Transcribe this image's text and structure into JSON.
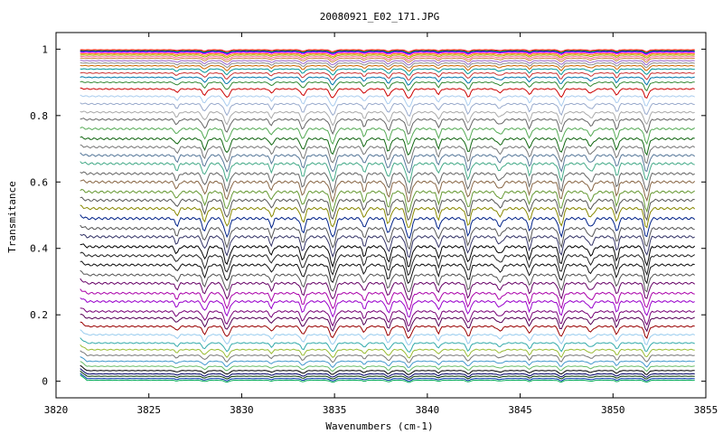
{
  "chart_data": {
    "type": "line",
    "title": "20080921_E02_171.JPG",
    "xlabel": "Wavenumbers (cm-1)",
    "ylabel": "Transmitance",
    "xlim": [
      3820,
      3855
    ],
    "ylim": [
      -0.05,
      1.05
    ],
    "x_range_data": [
      3821.3,
      3854.4
    ],
    "x_ticks": [
      3820,
      3825,
      3830,
      3835,
      3840,
      3845,
      3850,
      3855
    ],
    "x_tick_labels": [
      "3820",
      "3825",
      "3830",
      "3835",
      "3840",
      "3845",
      "3850",
      "3855"
    ],
    "y_ticks": [
      0,
      0.2,
      0.4,
      0.6,
      0.8,
      1
    ],
    "y_tick_labels": [
      "0",
      "0.2",
      "0.4",
      "0.6",
      "0.8",
      "1"
    ],
    "grid": false,
    "legend": "none",
    "absorption_lines_cm1": [
      3826.5,
      3828.0,
      3829.2,
      3831.6,
      3833.3,
      3834.9,
      3836.6,
      3837.9,
      3839.0,
      3840.6,
      3842.2,
      3843.9,
      3845.5,
      3847.2,
      3848.8,
      3850.2,
      3851.8
    ],
    "series": [
      {
        "baseline": 0.998,
        "color": "#ff0000"
      },
      {
        "baseline": 0.995,
        "color": "#00aa00"
      },
      {
        "baseline": 0.993,
        "color": "#0000ff"
      },
      {
        "baseline": 0.99,
        "color": "#ff00ff"
      },
      {
        "baseline": 0.986,
        "color": "#ff8800"
      },
      {
        "baseline": 0.982,
        "color": "#aaaa00"
      },
      {
        "baseline": 0.977,
        "color": "#ff6699"
      },
      {
        "baseline": 0.972,
        "color": "#cc8844"
      },
      {
        "baseline": 0.965,
        "color": "#9966cc"
      },
      {
        "baseline": 0.958,
        "color": "#888888"
      },
      {
        "baseline": 0.95,
        "color": "#cc6600"
      },
      {
        "baseline": 0.94,
        "color": "#009999"
      },
      {
        "baseline": 0.928,
        "color": "#cc3333"
      },
      {
        "baseline": 0.915,
        "color": "#0077aa"
      },
      {
        "baseline": 0.9,
        "color": "#338833"
      },
      {
        "baseline": 0.88,
        "color": "#cc0000"
      },
      {
        "baseline": 0.858,
        "color": "#aaccee"
      },
      {
        "baseline": 0.835,
        "color": "#99aacc"
      },
      {
        "baseline": 0.81,
        "color": "#aaaaaa"
      },
      {
        "baseline": 0.788,
        "color": "#666666"
      },
      {
        "baseline": 0.76,
        "color": "#55aa55"
      },
      {
        "baseline": 0.73,
        "color": "#116611"
      },
      {
        "baseline": 0.705,
        "color": "#777777"
      },
      {
        "baseline": 0.68,
        "color": "#557799"
      },
      {
        "baseline": 0.655,
        "color": "#44aa88"
      },
      {
        "baseline": 0.625,
        "color": "#666666"
      },
      {
        "baseline": 0.6,
        "color": "#886644"
      },
      {
        "baseline": 0.57,
        "color": "#669933"
      },
      {
        "baseline": 0.545,
        "color": "#555555"
      },
      {
        "baseline": 0.52,
        "color": "#888800"
      },
      {
        "baseline": 0.49,
        "color": "#002288"
      },
      {
        "baseline": 0.46,
        "color": "#555555"
      },
      {
        "baseline": 0.435,
        "color": "#333366"
      },
      {
        "baseline": 0.405,
        "color": "#000000"
      },
      {
        "baseline": 0.378,
        "color": "#222222"
      },
      {
        "baseline": 0.35,
        "color": "#111111"
      },
      {
        "baseline": 0.32,
        "color": "#555555"
      },
      {
        "baseline": 0.295,
        "color": "#660066"
      },
      {
        "baseline": 0.265,
        "color": "#aa00aa"
      },
      {
        "baseline": 0.24,
        "color": "#9900cc"
      },
      {
        "baseline": 0.21,
        "color": "#770077"
      },
      {
        "baseline": 0.19,
        "color": "#550055"
      },
      {
        "baseline": 0.165,
        "color": "#990000"
      },
      {
        "baseline": 0.14,
        "color": "#99ccee"
      },
      {
        "baseline": 0.115,
        "color": "#33aaaa"
      },
      {
        "baseline": 0.095,
        "color": "#99bb33"
      },
      {
        "baseline": 0.078,
        "color": "#777777"
      },
      {
        "baseline": 0.06,
        "color": "#4499cc"
      },
      {
        "baseline": 0.045,
        "color": "#66bb66"
      },
      {
        "baseline": 0.032,
        "color": "#000000"
      },
      {
        "baseline": 0.022,
        "color": "#000066"
      },
      {
        "baseline": 0.015,
        "color": "#003300"
      },
      {
        "baseline": 0.008,
        "color": "#0033aa"
      },
      {
        "baseline": 0.003,
        "color": "#00aa55"
      }
    ]
  }
}
